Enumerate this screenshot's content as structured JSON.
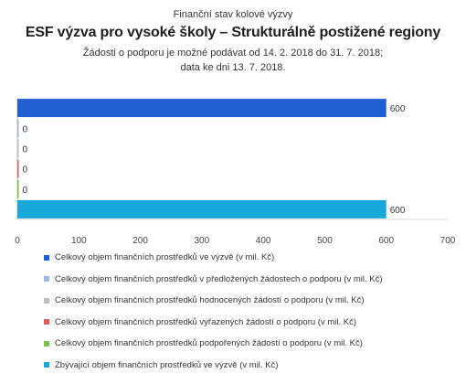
{
  "titles": {
    "top": "Finanční stav kolové výzvy",
    "main": "ESF výzva pro vysoké školy – Strukturálně postižené regiony",
    "sub1": "Žádosti o podporu je možné podávat od 14. 2. 2018 do 31. 7. 2018;",
    "sub2": "data ke dni 13. 7. 2018."
  },
  "chart_data": {
    "type": "bar",
    "orientation": "horizontal",
    "title": "ESF výzva pro vysoké školy – Strukturálně postižené regiony",
    "xlim": [
      0,
      700
    ],
    "xticks": [
      0,
      100,
      200,
      300,
      400,
      500,
      600,
      700
    ],
    "grid": false,
    "legend_position": "bottom",
    "series": [
      {
        "name": "Celkový objem finančních prostředků ve výzvě (v mil. Kč)",
        "value": 600,
        "label": "600",
        "color": "#1f5fd1"
      },
      {
        "name": "Celkový objem finančních prostředků v předložených žádostech o podporu (v mil. Kč)",
        "value": 0,
        "label": "0",
        "color": "#9db6dd"
      },
      {
        "name": "Celkový objem finančních prostředků hodnocených žádostí o podporu (v mil. Kč)",
        "value": 0,
        "label": "0",
        "color": "#bfbfbf"
      },
      {
        "name": "Celkový objem finančních prostředků vyřazených žádostí o podporu (v mil. Kč)",
        "value": 0,
        "label": "0",
        "color": "#e05a5a"
      },
      {
        "name": "Celkový objem finančních prostředků podpořených žádostí o podporu (v mil. Kč)",
        "value": 0,
        "label": "0",
        "color": "#7cc242"
      },
      {
        "name": "Zbývající objem finančních prostředků ve výzvě (v mil. Kč)",
        "value": 600,
        "label": "600",
        "color": "#17a7d8"
      }
    ]
  }
}
